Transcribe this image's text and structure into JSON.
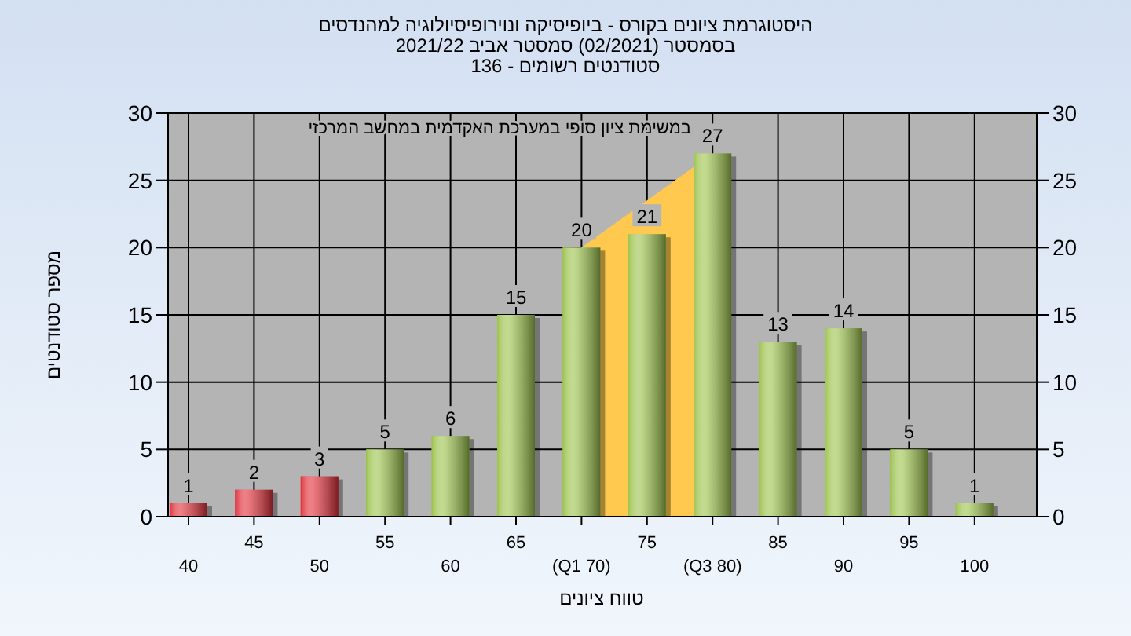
{
  "chart_data": {
    "type": "bar",
    "title": "היסטוגרמת ציונים בקורס - ביופיסיקה ונוירופיסיולוגיה למהנדסים\nבסמסטר  (02/2021)  סמסטר אביב 2021/22\nסטודנטים רשומים - 136",
    "subtitle": "במשימת ציון סופי במערכת האקדמית במחשב המרכזי",
    "xlabel": "טווח ציונים",
    "ylabel": "מספר סטודנטים",
    "categories": [
      "40",
      "45",
      "50",
      "55",
      "60",
      "65",
      "(Q1 70)",
      "75",
      "(Q3 80)",
      "85",
      "90",
      "95",
      "100"
    ],
    "series": [
      {
        "type": "area",
        "color": "#ffc94f",
        "values": [
          null,
          null,
          null,
          null,
          null,
          null,
          20,
          23.5,
          27,
          null,
          null,
          null,
          null
        ]
      },
      {
        "colors": [
          "#e0303a",
          "#e0303a",
          "#e0303a",
          "#9cc24c",
          "#9cc24c",
          "#9cc24c",
          "#9cc24c",
          "#9cc24c",
          "#9cc24c",
          "#9cc24c",
          "#9cc24c",
          "#9cc24c",
          "#9cc24c"
        ],
        "values": [
          1,
          2,
          3,
          5,
          6,
          15,
          20,
          21,
          27,
          13,
          14,
          5,
          1
        ],
        "value_labels": [
          "1",
          "2",
          "3",
          "5",
          "6",
          "15",
          "20",
          "21",
          "27",
          "13",
          "14",
          "5",
          "1"
        ]
      }
    ],
    "ylim": [
      0,
      30
    ],
    "yticks": [
      0,
      5,
      10,
      15,
      20,
      25,
      30
    ],
    "y2lim": [
      0,
      30
    ],
    "y2ticks": [
      0,
      5,
      10,
      15,
      20,
      25,
      30
    ],
    "grid": true
  }
}
